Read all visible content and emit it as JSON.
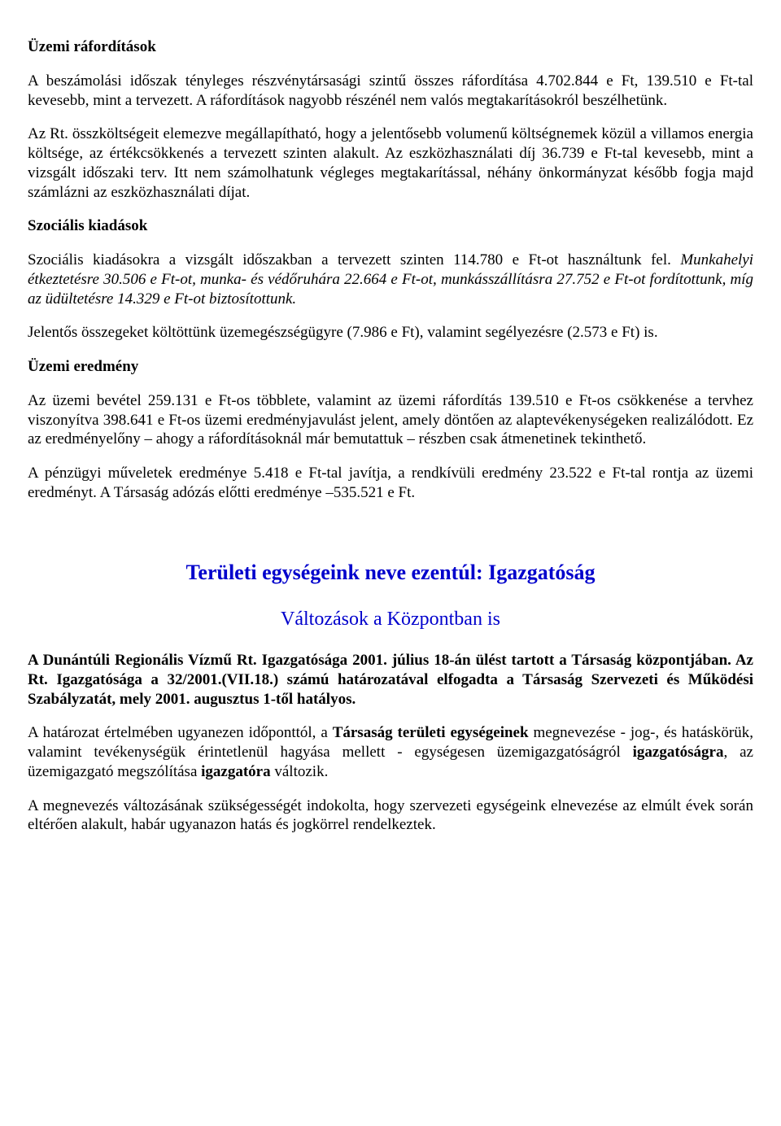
{
  "heading1": "Üzemi ráfordítások",
  "para1": "A beszámolási időszak tényleges részvénytársasági szintű összes ráfordítása 4.702.844 e Ft, 139.510 e Ft-tal kevesebb, mint a tervezett. A ráfordítások nagyobb részénél nem valós megtakarításokról beszélhetünk.",
  "para2": "Az Rt. összköltségeit elemezve megállapítható, hogy a jelentősebb volumenű költségnemek közül a villamos energia költsége, az értékcsökkenés a tervezett szinten alakult. Az eszközhasználati díj 36.739 e Ft-tal kevesebb, mint a vizsgált időszaki terv. Itt nem számolhatunk végleges megtakarítással, néhány önkormányzat később fogja majd számlázni az eszközhasználati díjat.",
  "heading2": "Szociális kiadások",
  "para3a": "Szociális kiadásokra a vizsgált időszakban a tervezett szinten 114.780 e Ft-ot használtunk fel. ",
  "para3b": "Munkahelyi étkeztetésre 30.506 e Ft-ot, munka- és védőruhára 22.664 e Ft-ot, munkásszállításra 27.752 e Ft-ot fordítottunk, míg az üdültetésre 14.329 e Ft-ot biztosítottunk.",
  "para4": "Jelentős összegeket költöttünk üzemegészségügyre (7.986 e Ft), valamint segélyezésre (2.573 e Ft) is.",
  "heading3": "Üzemi eredmény",
  "para5": "Az üzemi bevétel 259.131 e Ft-os többlete, valamint az üzemi ráfordítás 139.510 e Ft-os csökkenése a tervhez viszonyítva 398.641 e Ft-os üzemi eredményjavulást jelent, amely döntően az alaptevékenységeken realizálódott. Ez az eredményelőny – ahogy a ráfordításoknál már bemutattuk – részben csak átmenetinek tekinthető.",
  "para6": "A pénzügyi műveletek eredménye 5.418 e Ft-tal javítja, a rendkívüli eredmény 23.522 e Ft-tal rontja az üzemi eredményt. A Társaság adózás előtti eredménye –535.521 e Ft.",
  "title": "Területi egységeink neve ezentúl: Igazgatóság",
  "subtitle": "Változások a Központban is",
  "para7": "A Dunántúli Regionális Vízmű Rt. Igazgatósága 2001. július 18-án ülést tartott a Társaság központjában. Az Rt. Igazgatósága a 32/2001.(VII.18.) számú határozatával elfogadta a Társaság Szervezeti és Működési Szabályzatát, mely 2001. augusztus 1-től hatályos.",
  "para8a": "A határozat értelmében ugyanezen időponttól, a ",
  "para8b": "Társaság területi egységeinek ",
  "para8c": "megnevezése - jog-, és hatáskörük, valamint tevékenységük érintetlenül hagyása mellett - egységesen üzemigazgatóságról ",
  "para8d": "igazgatóságra",
  "para8e": ", az üzemigazgató megszólítása ",
  "para8f": "igazgatóra ",
  "para8g": "változik.",
  "para9": "A megnevezés változásának szükségességét indokolta, hogy szervezeti egységeink elnevezése az elmúlt évek során eltérően alakult, habár ugyanazon hatás és jogkörrel rendelkeztek."
}
